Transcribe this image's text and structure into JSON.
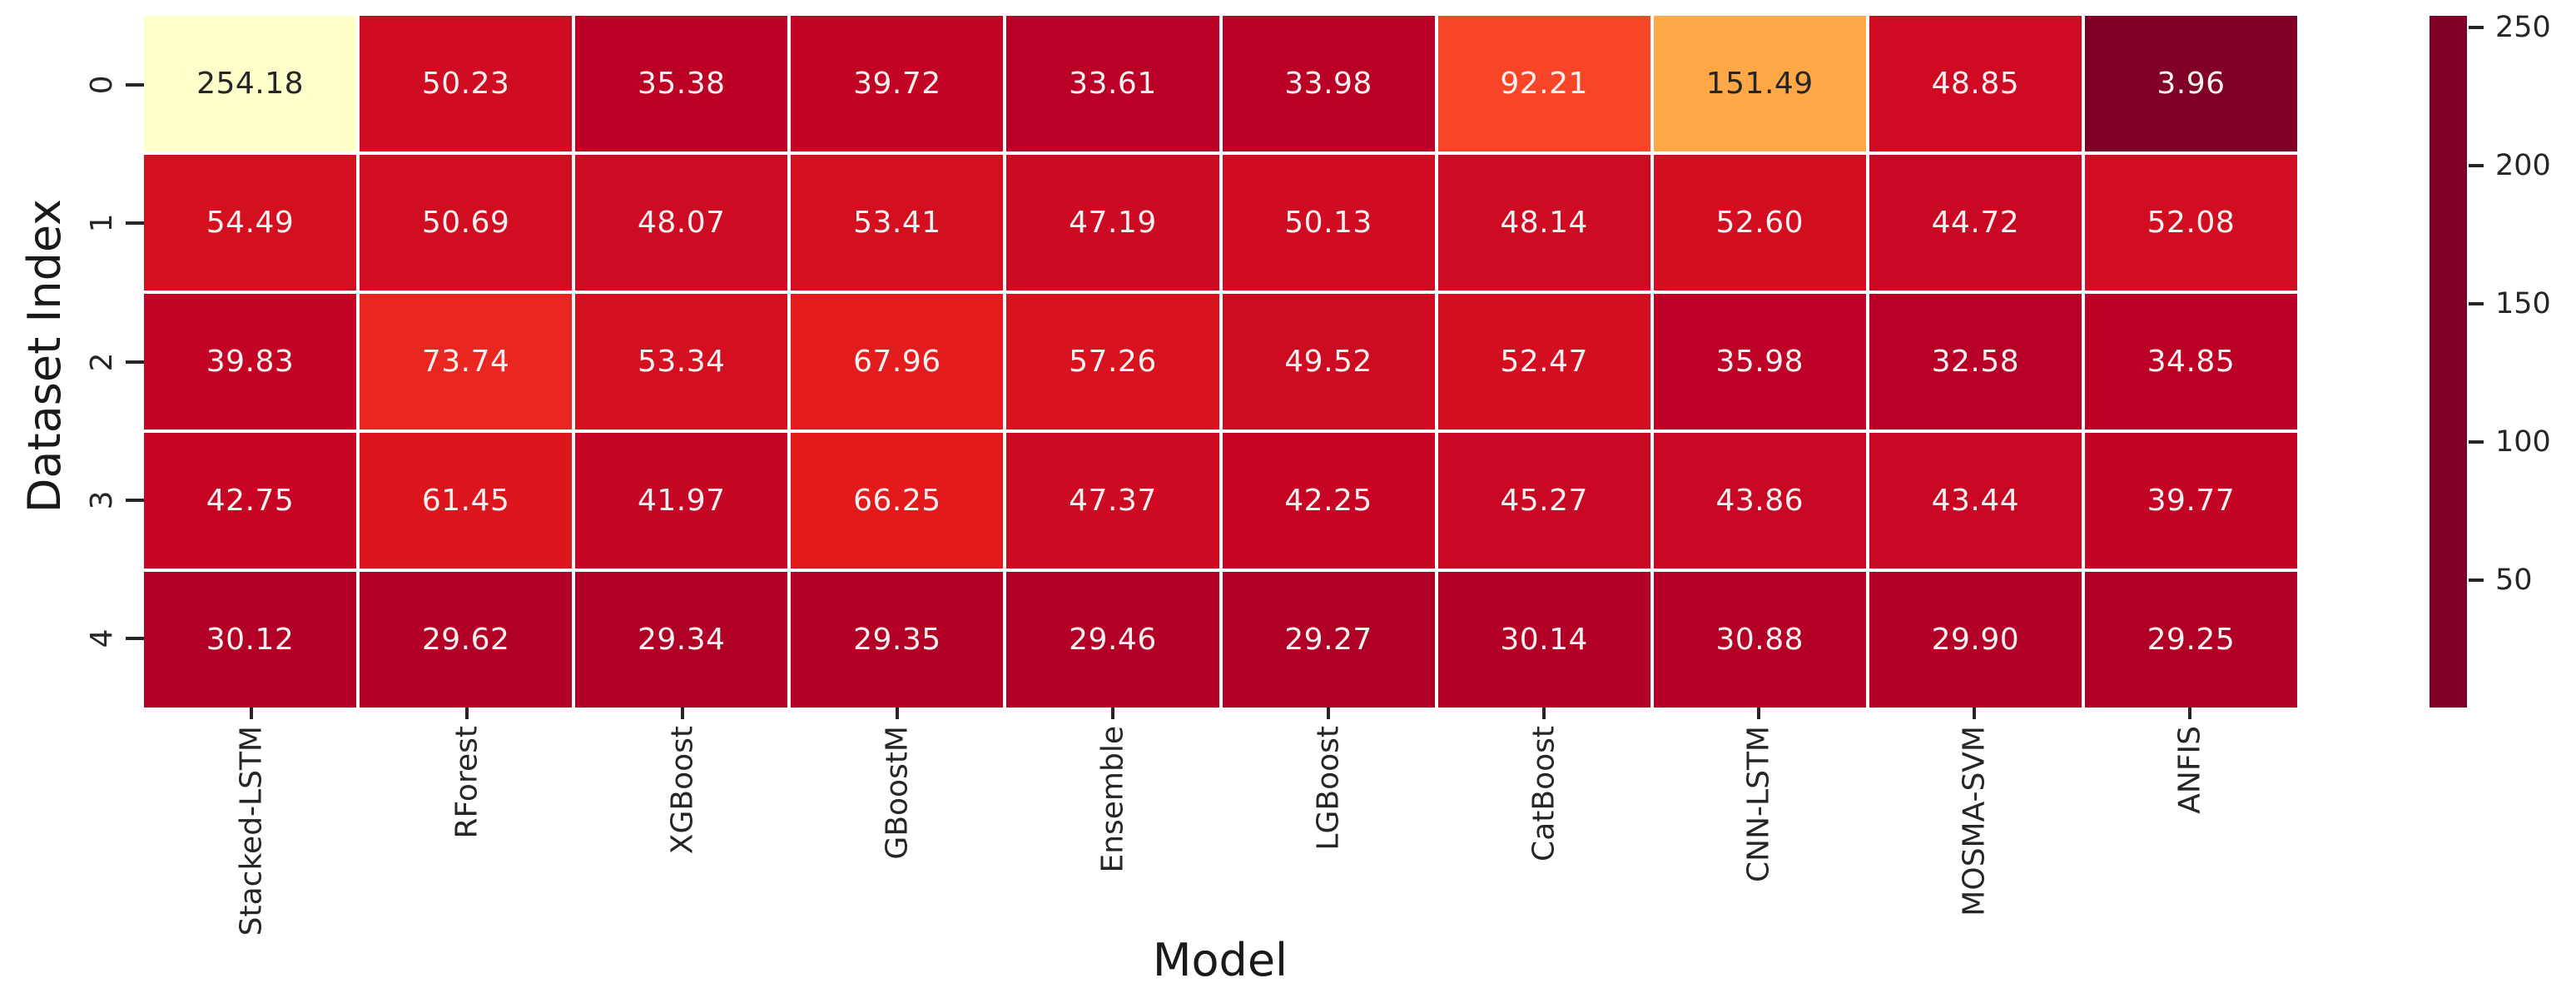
{
  "figure": {
    "xlabel": "Model",
    "ylabel": "Dataset Index"
  },
  "chart_data": {
    "type": "heatmap",
    "title": "",
    "xlabel": "Model",
    "ylabel": "Dataset Index",
    "x_categories": [
      "Stacked-LSTM",
      "RForest",
      "XGBoost",
      "GBoostM",
      "Ensemble",
      "LGBoost",
      "CatBoost",
      "CNN-LSTM",
      "MOSMA-SVM",
      "ANFIS"
    ],
    "y_categories": [
      "0",
      "1",
      "2",
      "3",
      "4"
    ],
    "values": [
      [
        254.18,
        50.23,
        35.38,
        39.72,
        33.61,
        33.98,
        92.21,
        151.49,
        48.85,
        3.96
      ],
      [
        54.49,
        50.69,
        48.07,
        53.41,
        47.19,
        50.13,
        48.14,
        52.6,
        44.72,
        52.08
      ],
      [
        39.83,
        73.74,
        53.34,
        67.96,
        57.26,
        49.52,
        52.47,
        35.98,
        32.58,
        34.85
      ],
      [
        42.75,
        61.45,
        41.97,
        66.25,
        47.37,
        42.25,
        45.27,
        43.86,
        43.44,
        39.77
      ],
      [
        30.12,
        29.62,
        29.34,
        29.35,
        29.46,
        29.27,
        30.14,
        30.88,
        29.9,
        29.25
      ]
    ],
    "value_decimals": 2,
    "vmin": 3.96,
    "vmax": 254.18,
    "colormap": "YlOrRd_r",
    "colormap_stops_low_to_high_value": [
      "#800026",
      "#bd0026",
      "#e31a1c",
      "#fc4e2a",
      "#fd8d3c",
      "#feb24c",
      "#fed976",
      "#ffeda0",
      "#ffffcc"
    ],
    "colorbar_ticks": [
      50,
      100,
      150,
      200,
      250
    ],
    "grid_line_color": "#ffffff",
    "annotation_color_on_dark": "#f4f1f1",
    "annotation_color_on_light": "#262626",
    "tick_label_color": "#262626",
    "axis_label_color": "#1a1a1a",
    "colorbar_position": "right",
    "grid_on": false
  }
}
